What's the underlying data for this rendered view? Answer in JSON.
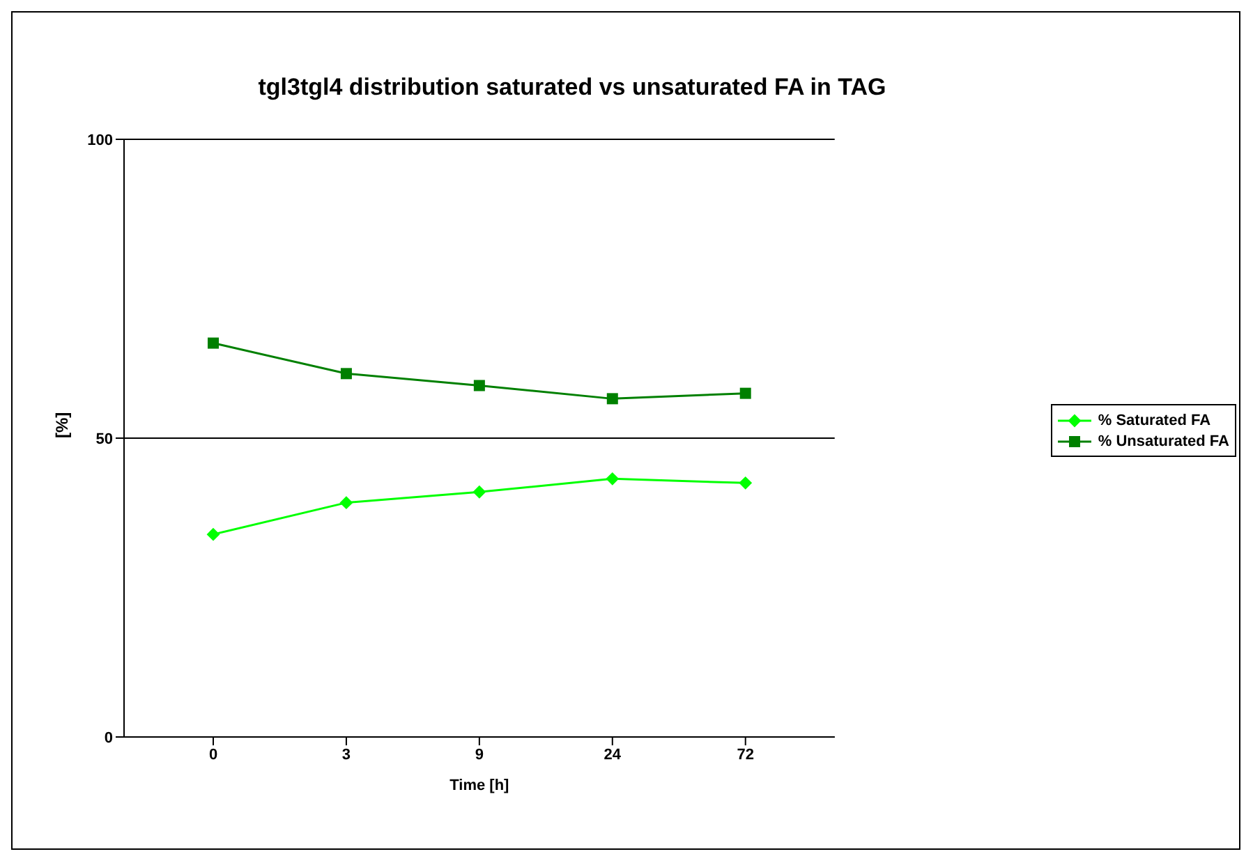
{
  "chart_data": {
    "type": "line",
    "title": "tgl3tgl4 distribution saturated vs unsaturated FA in TAG",
    "xlabel": "Time [h]",
    "ylabel": "[%]",
    "categories": [
      "0",
      "3",
      "9",
      "24",
      "72"
    ],
    "series": [
      {
        "name": "% Saturated FA",
        "color": "#00ff00",
        "marker": "diamond",
        "values": [
          33.9,
          39.2,
          41.0,
          43.2,
          42.5
        ]
      },
      {
        "name": "% Unsaturated FA",
        "color": "#008000",
        "marker": "square",
        "values": [
          65.9,
          60.8,
          58.8,
          56.6,
          57.5
        ]
      }
    ],
    "ylim": [
      0,
      100
    ],
    "yticks": [
      0,
      50,
      100
    ],
    "grid": "y",
    "legend": "right"
  }
}
